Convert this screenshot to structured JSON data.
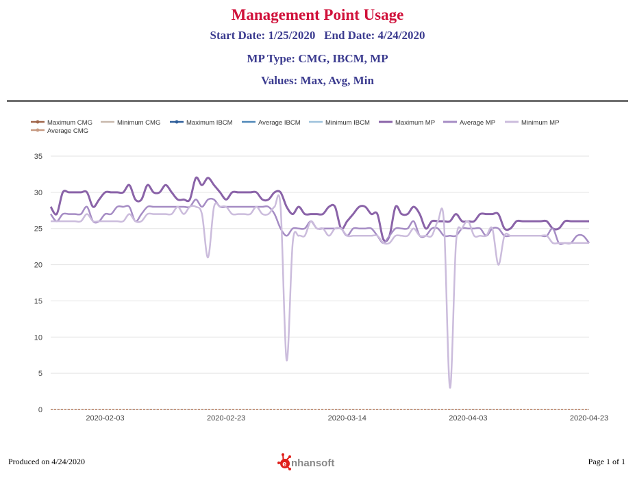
{
  "report": {
    "title": "Management Point Usage",
    "start_date_label": "Start Date: 1/25/2020",
    "end_date_label": "End Date: 4/24/2020",
    "mp_type": "MP Type: CMG, IBCM, MP",
    "values": "Values: Max, Avg, Min",
    "title_color": "#d0103a",
    "subtitle_color": "#3b3b8f"
  },
  "footer": {
    "produced": "Produced on 4/24/2020",
    "page": "Page 1 of 1",
    "logo_text": "nhansoft",
    "logo_letter": "e",
    "logo_color": "#e0201c"
  },
  "chart_data": {
    "type": "line",
    "ylim": [
      0,
      35
    ],
    "yticks": [
      0,
      5,
      10,
      15,
      20,
      25,
      30,
      35
    ],
    "xtick_labels": [
      "2020-02-03",
      "2020-02-23",
      "2020-03-14",
      "2020-04-03",
      "2020-04-23"
    ],
    "x_start": "2020-01-25",
    "x_end": "2020-04-23",
    "grid": true,
    "legend_position": "top-left",
    "series": [
      {
        "name": "Maximum CMG",
        "color": "#a0664a",
        "marker": true,
        "values": [
          [
            0,
            0
          ],
          [
            89,
            0
          ]
        ]
      },
      {
        "name": "Minimum CMG",
        "color": "#c8b8ac",
        "marker": false,
        "values": [
          [
            0,
            0
          ],
          [
            89,
            0
          ]
        ]
      },
      {
        "name": "Maximum IBCM",
        "color": "#2e5e9a",
        "marker": true,
        "values": [
          [
            0,
            0
          ],
          [
            89,
            0
          ]
        ]
      },
      {
        "name": "Average IBCM",
        "color": "#4f87b8",
        "marker": false,
        "values": [
          [
            0,
            0
          ],
          [
            89,
            0
          ]
        ]
      },
      {
        "name": "Minimum IBCM",
        "color": "#9ec1dc",
        "marker": false,
        "values": [
          [
            0,
            0
          ],
          [
            89,
            0
          ]
        ]
      },
      {
        "name": "Maximum MP",
        "color": "#8a63a8",
        "marker": false,
        "width": 3,
        "values": [
          [
            0,
            28
          ],
          [
            1,
            27
          ],
          [
            2,
            30
          ],
          [
            3,
            30
          ],
          [
            4,
            30
          ],
          [
            5,
            30
          ],
          [
            6,
            30
          ],
          [
            7,
            28
          ],
          [
            8,
            29
          ],
          [
            9,
            30
          ],
          [
            10,
            30
          ],
          [
            11,
            30
          ],
          [
            12,
            30
          ],
          [
            13,
            31
          ],
          [
            14,
            29
          ],
          [
            15,
            29
          ],
          [
            16,
            31
          ],
          [
            17,
            30
          ],
          [
            18,
            30
          ],
          [
            19,
            31
          ],
          [
            20,
            30
          ],
          [
            21,
            29
          ],
          [
            22,
            29
          ],
          [
            23,
            29
          ],
          [
            24,
            32
          ],
          [
            25,
            31
          ],
          [
            26,
            32
          ],
          [
            27,
            31
          ],
          [
            28,
            30
          ],
          [
            29,
            29
          ],
          [
            30,
            30
          ],
          [
            31,
            30
          ],
          [
            32,
            30
          ],
          [
            33,
            30
          ],
          [
            34,
            30
          ],
          [
            35,
            29
          ],
          [
            36,
            29
          ],
          [
            37,
            30
          ],
          [
            38,
            30
          ],
          [
            39,
            28
          ],
          [
            40,
            27
          ],
          [
            41,
            28
          ],
          [
            42,
            27
          ],
          [
            43,
            27
          ],
          [
            44,
            27
          ],
          [
            45,
            27
          ],
          [
            46,
            28
          ],
          [
            47,
            28
          ],
          [
            48,
            25
          ],
          [
            49,
            26
          ],
          [
            50,
            27
          ],
          [
            51,
            28
          ],
          [
            52,
            28
          ],
          [
            53,
            27
          ],
          [
            54,
            27
          ],
          [
            55,
            23.5
          ],
          [
            56,
            24
          ],
          [
            57,
            28
          ],
          [
            58,
            27
          ],
          [
            59,
            27
          ],
          [
            60,
            28
          ],
          [
            61,
            27
          ],
          [
            62,
            25
          ],
          [
            63,
            26
          ],
          [
            64,
            26
          ],
          [
            65,
            26
          ],
          [
            66,
            26
          ],
          [
            67,
            27
          ],
          [
            68,
            26
          ],
          [
            69,
            26
          ],
          [
            70,
            26
          ],
          [
            71,
            27
          ],
          [
            72,
            27
          ],
          [
            73,
            27
          ],
          [
            74,
            27
          ],
          [
            75,
            25
          ],
          [
            76,
            25
          ],
          [
            77,
            26
          ],
          [
            78,
            26
          ],
          [
            79,
            26
          ],
          [
            80,
            26
          ],
          [
            81,
            26
          ],
          [
            82,
            26
          ],
          [
            83,
            25
          ],
          [
            84,
            25
          ],
          [
            85,
            26
          ],
          [
            86,
            26
          ],
          [
            87,
            26
          ],
          [
            88,
            26
          ],
          [
            89,
            26
          ]
        ]
      },
      {
        "name": "Average MP",
        "color": "#a58cc4",
        "marker": false,
        "width": 2.5,
        "values": [
          [
            0,
            27
          ],
          [
            1,
            26
          ],
          [
            2,
            27
          ],
          [
            3,
            27
          ],
          [
            4,
            27
          ],
          [
            5,
            27
          ],
          [
            6,
            28
          ],
          [
            7,
            26
          ],
          [
            8,
            26
          ],
          [
            9,
            27
          ],
          [
            10,
            27
          ],
          [
            11,
            28
          ],
          [
            12,
            28
          ],
          [
            13,
            28
          ],
          [
            14,
            26
          ],
          [
            15,
            27
          ],
          [
            16,
            28
          ],
          [
            17,
            28
          ],
          [
            18,
            28
          ],
          [
            19,
            28
          ],
          [
            20,
            28
          ],
          [
            21,
            28
          ],
          [
            22,
            28
          ],
          [
            23,
            28
          ],
          [
            24,
            29
          ],
          [
            25,
            28
          ],
          [
            26,
            29
          ],
          [
            27,
            29
          ],
          [
            28,
            28
          ],
          [
            29,
            28
          ],
          [
            30,
            28
          ],
          [
            31,
            28
          ],
          [
            32,
            28
          ],
          [
            33,
            28
          ],
          [
            34,
            28
          ],
          [
            35,
            28
          ],
          [
            36,
            28
          ],
          [
            37,
            27
          ],
          [
            38,
            25
          ],
          [
            39,
            24
          ],
          [
            40,
            25
          ],
          [
            41,
            25
          ],
          [
            42,
            25
          ],
          [
            43,
            26
          ],
          [
            44,
            25
          ],
          [
            45,
            25
          ],
          [
            46,
            25
          ],
          [
            47,
            25
          ],
          [
            48,
            25
          ],
          [
            49,
            24
          ],
          [
            50,
            25
          ],
          [
            51,
            25
          ],
          [
            52,
            25
          ],
          [
            53,
            25
          ],
          [
            54,
            24
          ],
          [
            55,
            23
          ],
          [
            56,
            24
          ],
          [
            57,
            25
          ],
          [
            58,
            25
          ],
          [
            59,
            25
          ],
          [
            60,
            26
          ],
          [
            61,
            24
          ],
          [
            62,
            24
          ],
          [
            63,
            25
          ],
          [
            64,
            25
          ],
          [
            65,
            24
          ],
          [
            66,
            24
          ],
          [
            67,
            24
          ],
          [
            68,
            25
          ],
          [
            69,
            25
          ],
          [
            70,
            25
          ],
          [
            71,
            25
          ],
          [
            72,
            24
          ],
          [
            73,
            25
          ],
          [
            74,
            25
          ],
          [
            75,
            24
          ],
          [
            76,
            24
          ],
          [
            77,
            24
          ],
          [
            78,
            24
          ],
          [
            79,
            24
          ],
          [
            80,
            24
          ],
          [
            81,
            24
          ],
          [
            82,
            24
          ],
          [
            83,
            25
          ],
          [
            84,
            23
          ],
          [
            85,
            23
          ],
          [
            86,
            23
          ],
          [
            87,
            24
          ],
          [
            88,
            24
          ],
          [
            89,
            23
          ]
        ]
      },
      {
        "name": "Minimum MP",
        "color": "#cbbcdc",
        "marker": false,
        "width": 2.5,
        "values": [
          [
            0,
            26
          ],
          [
            1,
            26
          ],
          [
            2,
            26
          ],
          [
            3,
            26
          ],
          [
            4,
            26
          ],
          [
            5,
            26
          ],
          [
            6,
            27
          ],
          [
            7,
            26
          ],
          [
            8,
            26
          ],
          [
            9,
            26
          ],
          [
            10,
            26
          ],
          [
            11,
            26
          ],
          [
            12,
            26
          ],
          [
            13,
            27
          ],
          [
            14,
            26
          ],
          [
            15,
            26
          ],
          [
            16,
            27
          ],
          [
            17,
            27
          ],
          [
            18,
            27
          ],
          [
            19,
            27
          ],
          [
            20,
            27
          ],
          [
            21,
            28
          ],
          [
            22,
            27
          ],
          [
            23,
            28
          ],
          [
            24,
            28
          ],
          [
            25,
            27
          ],
          [
            26,
            21
          ],
          [
            27,
            28
          ],
          [
            28,
            28
          ],
          [
            29,
            28
          ],
          [
            30,
            27
          ],
          [
            31,
            27
          ],
          [
            32,
            27
          ],
          [
            33,
            27
          ],
          [
            34,
            28
          ],
          [
            35,
            27
          ],
          [
            36,
            27
          ],
          [
            37,
            28
          ],
          [
            38,
            28
          ],
          [
            39,
            6.8
          ],
          [
            40,
            23
          ],
          [
            41,
            24
          ],
          [
            42,
            24
          ],
          [
            43,
            26
          ],
          [
            44,
            25
          ],
          [
            45,
            25
          ],
          [
            46,
            24
          ],
          [
            47,
            25
          ],
          [
            48,
            25
          ],
          [
            49,
            24
          ],
          [
            50,
            24
          ],
          [
            51,
            24
          ],
          [
            52,
            24
          ],
          [
            53,
            24
          ],
          [
            54,
            24
          ],
          [
            55,
            23
          ],
          [
            56,
            23
          ],
          [
            57,
            24
          ],
          [
            58,
            24
          ],
          [
            59,
            24
          ],
          [
            60,
            25
          ],
          [
            61,
            24
          ],
          [
            62,
            24
          ],
          [
            63,
            24
          ],
          [
            64,
            26
          ],
          [
            65,
            26
          ],
          [
            66,
            3
          ],
          [
            67,
            23
          ],
          [
            68,
            25
          ],
          [
            69,
            26
          ],
          [
            70,
            24
          ],
          [
            71,
            24
          ],
          [
            72,
            24
          ],
          [
            73,
            25
          ],
          [
            74,
            20
          ],
          [
            75,
            24
          ],
          [
            76,
            24
          ],
          [
            77,
            24
          ],
          [
            78,
            24
          ],
          [
            79,
            24
          ],
          [
            80,
            24
          ],
          [
            81,
            24
          ],
          [
            82,
            24
          ],
          [
            83,
            23
          ],
          [
            84,
            23
          ],
          [
            85,
            23
          ],
          [
            86,
            23
          ],
          [
            87,
            23
          ],
          [
            88,
            23
          ],
          [
            89,
            23
          ]
        ]
      },
      {
        "name": "Average CMG",
        "color": "#c79a82",
        "marker": true,
        "values": [
          [
            0,
            0
          ],
          [
            89,
            0
          ]
        ]
      }
    ]
  }
}
